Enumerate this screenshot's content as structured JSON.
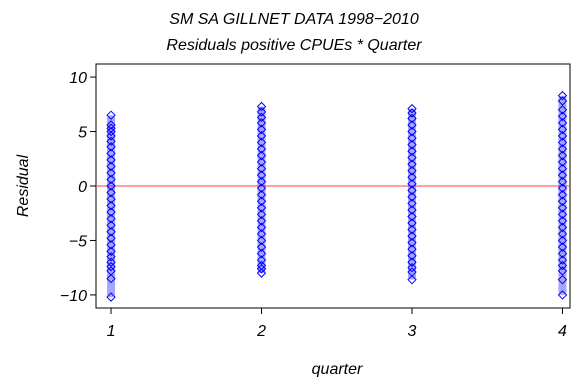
{
  "chart_data": {
    "type": "scatter",
    "title": "SM SA GILLNET DATA 1998−2010",
    "subtitle": "Residuals positive CPUEs * Quarter",
    "xlabel": "quarter",
    "ylabel": "Residual",
    "x_ticks": [
      "1",
      "2",
      "3",
      "4"
    ],
    "y_ticks": [
      "−10",
      "−5",
      "0",
      "5",
      "10"
    ],
    "xlim": [
      0.9,
      4.05
    ],
    "ylim": [
      -11.2,
      11.2
    ],
    "reference_line": {
      "y": 0,
      "color": "#ff4040"
    },
    "marker": {
      "shape": "diamond",
      "color": "#0000ff"
    },
    "grid": false,
    "series": [
      {
        "quarter": 1,
        "min": -10.2,
        "max": 6.5,
        "values": [
          6.5,
          5.6,
          5.3,
          5.0,
          4.6,
          4.1,
          3.6,
          3.0,
          2.4,
          1.8,
          1.2,
          0.6,
          0.0,
          -0.6,
          -1.2,
          -1.8,
          -2.4,
          -3.0,
          -3.6,
          -4.2,
          -4.8,
          -5.4,
          -6.0,
          -6.5,
          -7.0,
          -7.4,
          -7.8,
          -8.5,
          -10.2
        ]
      },
      {
        "quarter": 2,
        "min": -8.0,
        "max": 7.3,
        "values": [
          7.3,
          6.8,
          6.3,
          5.8,
          5.2,
          4.6,
          4.0,
          3.4,
          2.8,
          2.2,
          1.6,
          1.0,
          0.4,
          -0.2,
          -0.8,
          -1.4,
          -2.0,
          -2.6,
          -3.2,
          -3.8,
          -4.4,
          -5.0,
          -5.6,
          -6.2,
          -6.8,
          -7.3,
          -7.6,
          -8.0
        ]
      },
      {
        "quarter": 3,
        "min": -8.6,
        "max": 7.1,
        "values": [
          7.1,
          6.7,
          6.2,
          5.6,
          5.0,
          4.4,
          3.8,
          3.2,
          2.6,
          2.0,
          1.4,
          0.8,
          0.2,
          -0.4,
          -1.0,
          -1.6,
          -2.2,
          -2.8,
          -3.4,
          -4.0,
          -4.6,
          -5.2,
          -5.8,
          -6.4,
          -7.0,
          -7.5,
          -7.9,
          -8.6
        ]
      },
      {
        "quarter": 4,
        "min": -10.0,
        "max": 8.3,
        "values": [
          8.3,
          7.8,
          7.0,
          6.4,
          5.8,
          5.2,
          4.6,
          4.0,
          3.4,
          2.8,
          2.2,
          1.6,
          1.0,
          0.4,
          -0.2,
          -0.8,
          -1.4,
          -2.0,
          -2.6,
          -3.2,
          -3.8,
          -4.4,
          -5.0,
          -5.6,
          -6.2,
          -6.8,
          -7.3,
          -7.8,
          -8.6,
          -10.0
        ]
      }
    ]
  }
}
